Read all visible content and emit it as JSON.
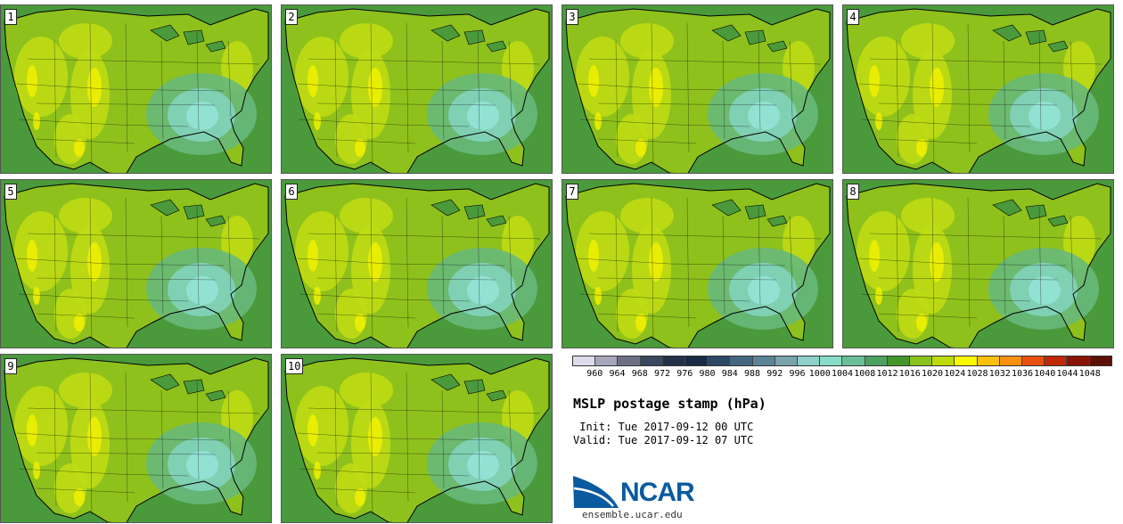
{
  "panels": [
    {
      "label": "1"
    },
    {
      "label": "2"
    },
    {
      "label": "3"
    },
    {
      "label": "4"
    },
    {
      "label": "5"
    },
    {
      "label": "6"
    },
    {
      "label": "7"
    },
    {
      "label": "8"
    },
    {
      "label": "9"
    },
    {
      "label": "10"
    }
  ],
  "colorbar": {
    "ticks": [
      "960",
      "964",
      "968",
      "972",
      "976",
      "980",
      "984",
      "988",
      "992",
      "996",
      "1000",
      "1004",
      "1008",
      "1012",
      "1016",
      "1020",
      "1024",
      "1028",
      "1032",
      "1036",
      "1040",
      "1044",
      "1048"
    ],
    "colors": [
      "#dcdcec",
      "#a6a6bc",
      "#6e6e84",
      "#3c4860",
      "#22304a",
      "#1a2a44",
      "#2c4866",
      "#44667e",
      "#5c8296",
      "#78a2ac",
      "#8cd0c8",
      "#88dcc8",
      "#6cbe98",
      "#4ea060",
      "#44952c",
      "#88c41c",
      "#bcda0c",
      "#f8f800",
      "#f8c010",
      "#f89010",
      "#e85010",
      "#c02808",
      "#881408",
      "#5c1008"
    ]
  },
  "title": "MSLP postage stamp (hPa)",
  "init_line": " Init: Tue 2017-09-12 00 UTC",
  "valid_line": "Valid: Tue 2017-09-12 07 UTC",
  "logo": {
    "text": "NCAR",
    "color": "#0a5aa0"
  },
  "site": "ensemble.ucar.edu",
  "colors": {
    "ocean": "#4a9a3c",
    "land_base": "#8fc11c",
    "land_high": "#bfdb14",
    "land_peak": "#f0f000",
    "low_ring": "#68b87a",
    "low_mid": "#80d0b4",
    "low_center": "#92e2d4",
    "border": "#000000"
  }
}
